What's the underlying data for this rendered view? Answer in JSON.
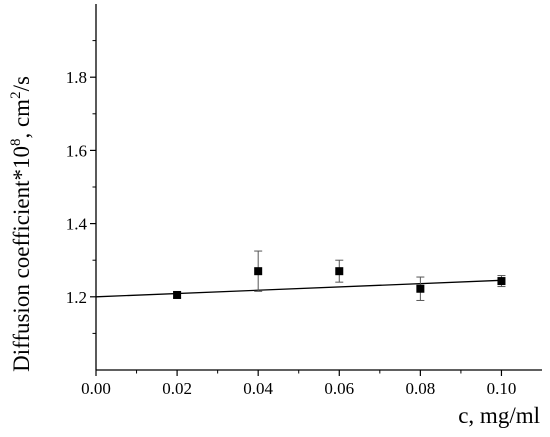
{
  "chart_data": {
    "type": "scatter",
    "xlabel": "c, mg/ml",
    "ylabel_main": "Diffusion coefficient*10",
    "ylabel_sup1": "8",
    "ylabel_mid": ", cm",
    "ylabel_sup2": "2",
    "ylabel_tail": "/s",
    "xlim": [
      0.0,
      0.11
    ],
    "ylim": [
      1.0,
      2.0
    ],
    "x_ticks": [
      "0.00",
      "0.02",
      "0.04",
      "0.06",
      "0.08",
      "0.10"
    ],
    "y_ticks": [
      "1.2",
      "1.4",
      "1.6",
      "1.8"
    ],
    "grid": false,
    "series": [
      {
        "points": [
          {
            "x": 0.02,
            "y": 1.205,
            "err": 0.008
          },
          {
            "x": 0.04,
            "y": 1.27,
            "err": 0.055
          },
          {
            "x": 0.06,
            "y": 1.27,
            "err": 0.03
          },
          {
            "x": 0.08,
            "y": 1.222,
            "err": 0.032
          },
          {
            "x": 0.1,
            "y": 1.243,
            "err": 0.015
          }
        ],
        "marker": "square",
        "color": "#000000"
      }
    ],
    "fit_line": {
      "x": [
        0.0,
        0.1
      ],
      "y": [
        1.2,
        1.245
      ],
      "color": "#000000"
    }
  }
}
